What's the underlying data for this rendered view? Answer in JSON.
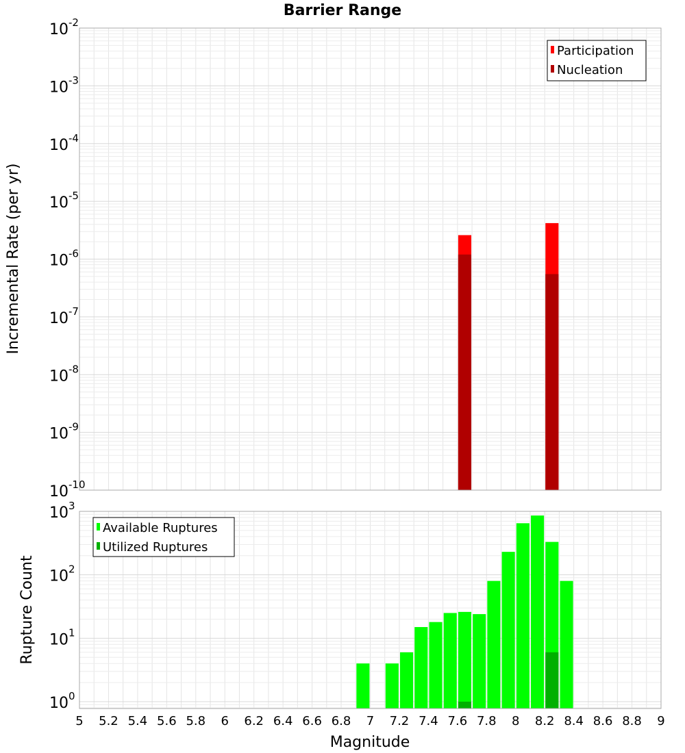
{
  "chart_data": [
    {
      "type": "bar",
      "scale": "log",
      "title": "Barrier Range",
      "xlabel": "",
      "ylabel": "Incremental Rate (per yr)",
      "xlim": [
        5,
        9
      ],
      "ylim": [
        1e-10,
        0.01
      ],
      "y_ticks": [
        {
          "base": "10",
          "exp": "-2"
        },
        {
          "base": "10",
          "exp": "-3"
        },
        {
          "base": "10",
          "exp": "-4"
        },
        {
          "base": "10",
          "exp": "-5"
        },
        {
          "base": "10",
          "exp": "-6"
        },
        {
          "base": "10",
          "exp": "-7"
        },
        {
          "base": "10",
          "exp": "-8"
        },
        {
          "base": "10",
          "exp": "-9"
        },
        {
          "base": "10",
          "exp": "-10"
        }
      ],
      "bar_width": 0.09,
      "grid": true,
      "legend_position": "top-right",
      "series": [
        {
          "name": "Participation",
          "color": "#ff0000",
          "x": [
            7.65,
            8.25
          ],
          "values": [
            2.6e-06,
            4.2e-06
          ]
        },
        {
          "name": "Nucleation",
          "color": "#b00000",
          "x": [
            7.65,
            8.25
          ],
          "values": [
            1.2e-06,
            5.5e-07
          ]
        }
      ]
    },
    {
      "type": "bar",
      "scale": "log",
      "title": "",
      "xlabel": "Magnitude",
      "ylabel": "Rupture Count",
      "xlim": [
        5,
        9
      ],
      "ylim": [
        0.78,
        1000
      ],
      "x_ticks": [
        "5",
        "5.2",
        "5.4",
        "5.6",
        "5.8",
        "6",
        "6.2",
        "6.4",
        "6.6",
        "6.8",
        "7",
        "7.2",
        "7.4",
        "7.6",
        "7.8",
        "8",
        "8.2",
        "8.4",
        "8.6",
        "8.8",
        "9"
      ],
      "y_ticks": [
        {
          "base": "10",
          "exp": "3"
        },
        {
          "base": "10",
          "exp": "2"
        },
        {
          "base": "10",
          "exp": "1"
        },
        {
          "base": "10",
          "exp": "0"
        }
      ],
      "bar_width": 0.09,
      "grid": true,
      "legend_position": "top-left",
      "series": [
        {
          "name": "Available Ruptures",
          "color": "#00ff00",
          "x": [
            6.95,
            7.15,
            7.25,
            7.35,
            7.45,
            7.55,
            7.65,
            7.75,
            7.85,
            7.95,
            8.05,
            8.15,
            8.25,
            8.35
          ],
          "values": [
            4,
            4,
            6,
            15,
            18,
            25,
            26,
            24,
            80,
            230,
            650,
            860,
            330,
            80
          ]
        },
        {
          "name": "Utilized Ruptures",
          "color": "#00b000",
          "x": [
            7.65,
            8.25
          ],
          "values": [
            1,
            6
          ]
        }
      ]
    }
  ]
}
